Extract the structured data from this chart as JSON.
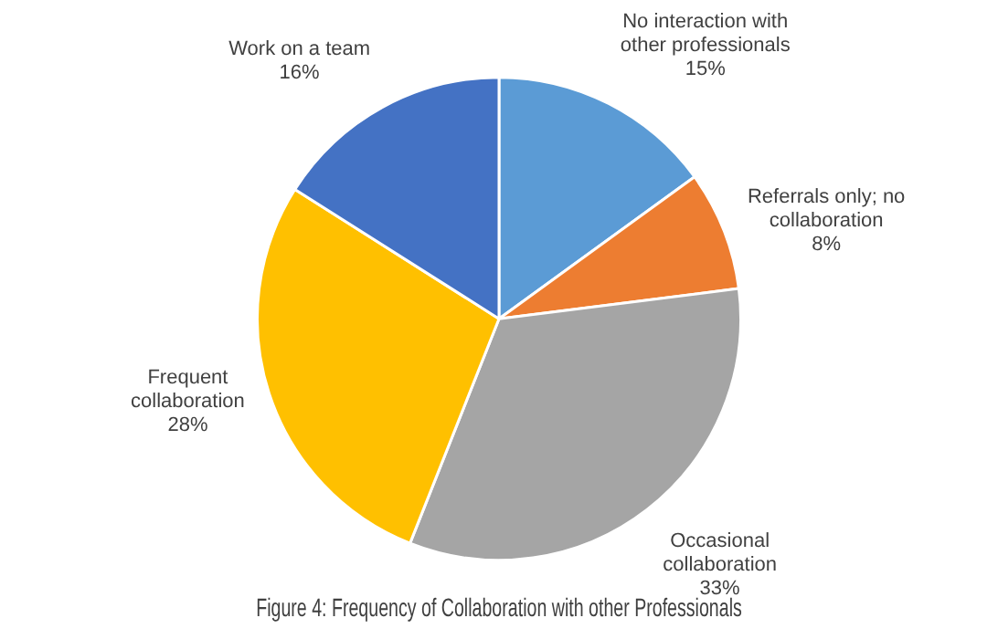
{
  "chart_data": {
    "type": "pie",
    "title": "Figure 4: Frequency of Collaboration with other Professionals",
    "categories": [
      "No interaction with other professionals",
      "Referrals only; no collaboration",
      "Occasional collaboration",
      "Frequent collaboration",
      "Work on a team"
    ],
    "values": [
      15,
      8,
      33,
      28,
      16
    ],
    "value_labels": [
      "15%",
      "8%",
      "33%",
      "28%",
      "16%"
    ],
    "colors": [
      "#5b9bd5",
      "#ed7d31",
      "#a5a5a5",
      "#ffc000",
      "#4472c4"
    ],
    "legend": false
  }
}
